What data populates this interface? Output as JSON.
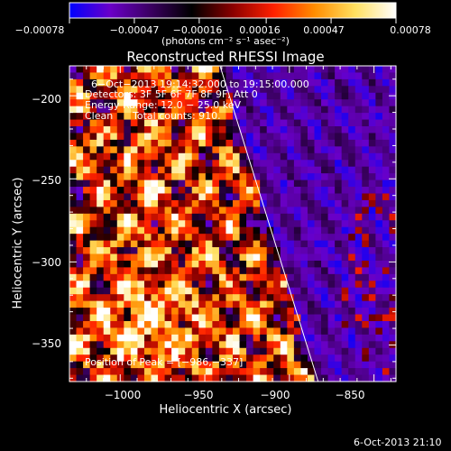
{
  "chart_data": {
    "type": "heatmap",
    "title": "Reconstructed RHESSI Image",
    "xlabel": "Heliocentric X (arcsec)",
    "ylabel": "Heliocentric Y (arcsec)",
    "xlim": [
      -1030,
      -837
    ],
    "ylim": [
      -372,
      -182
    ],
    "x_ticks": [
      "−1000",
      "−950",
      "−900",
      "−850"
    ],
    "x_tick_values": [
      -1000,
      -950,
      -900,
      -850
    ],
    "y_ticks": [
      "−200",
      "−250",
      "−300",
      "−350"
    ],
    "y_tick_values": [
      -200,
      -250,
      -300,
      -350
    ],
    "colorbar": {
      "tick_labels": [
        "−0.00078",
        "−0.00047",
        "−0.00016",
        "0.00016",
        "0.00047",
        "0.00078"
      ],
      "tick_values": [
        -0.00078,
        -0.00047,
        -0.00016,
        0.00016,
        0.00047,
        0.00078
      ],
      "unit_label": "(photons cm⁻² s⁻¹ asec⁻²)",
      "colormap": [
        "#0000ff",
        "#6a00c8",
        "#3a0060",
        "#000000",
        "#8a0000",
        "#ff2000",
        "#ff8c00",
        "#ffe060",
        "#ffffff"
      ]
    },
    "annotations": {
      "time_range": "6−Oct−2013 19:14:32.000 to 19:15:00.000",
      "detectors": "Detectors: 3F 5F 6F 7F 8F 9F, Att 0",
      "energy_range": "Energy Range: 12.0 − 25.0 keV",
      "method": "Clean",
      "total_counts": "Total counts: 910.",
      "peak": "Position of Peak = [−986,−337]"
    },
    "peak_position": [
      -986,
      -337
    ],
    "limb_line": [
      [
        -941,
        -182
      ],
      [
        -883,
        -372
      ]
    ],
    "grid_cells": [
      48,
      47
    ]
  },
  "footer": {
    "timestamp": "6-Oct-2013 21:10"
  }
}
